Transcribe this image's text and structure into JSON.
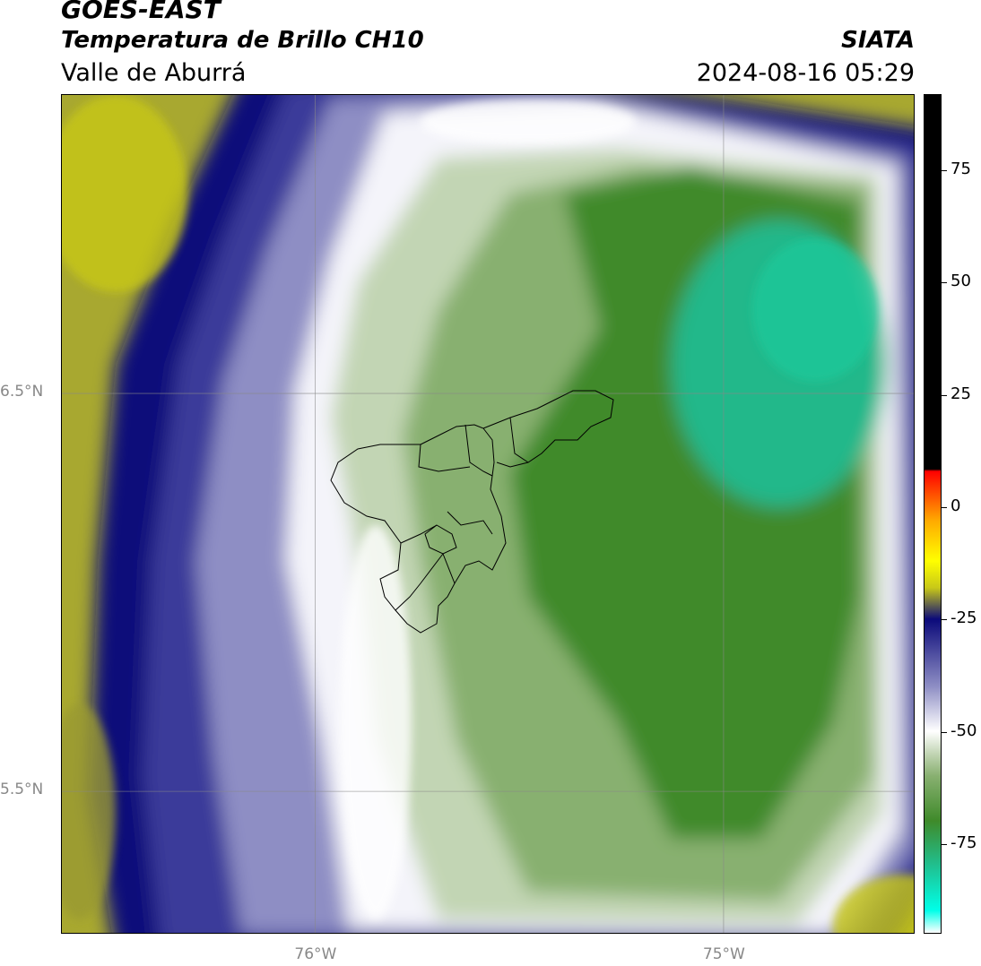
{
  "header": {
    "title": "GOES-EAST",
    "subtitle": "Temperatura de Brillo CH10",
    "region": "Valle de Aburrá",
    "organization": "SIATA",
    "timestamp": "2024-08-16 05:29"
  },
  "map": {
    "lat_gridlines": [
      {
        "value": 6.5,
        "label": "6.5°N"
      },
      {
        "value": 5.5,
        "label": "5.5°N"
      }
    ],
    "lon_gridlines": [
      {
        "value": -76.0,
        "label": "76°W"
      },
      {
        "value": -75.0,
        "label": "75°W"
      }
    ],
    "extent": {
      "lon_min": -76.62,
      "lon_max": -74.53,
      "lat_min": 5.14,
      "lat_max": 7.25
    },
    "colors": {
      "warm_cloud_free": "#c8c818",
      "navy": "#0b0a7a",
      "lavender": "#8e8ec4",
      "white": "#ffffff",
      "pale_green": "#c2d5b4",
      "mid_green": "#88b070",
      "deep_green": "#3f8a2a",
      "teal": "#20c090",
      "boundary": "#000000"
    }
  },
  "colorbar": {
    "min": -95,
    "max": 92,
    "ticks": [
      {
        "value": 75,
        "label": "75"
      },
      {
        "value": 50,
        "label": "50"
      },
      {
        "value": 25,
        "label": "25"
      },
      {
        "value": 0,
        "label": "0"
      },
      {
        "value": -25,
        "label": "-25"
      },
      {
        "value": -50,
        "label": "-50"
      },
      {
        "value": -75,
        "label": "-75"
      }
    ],
    "stops": [
      {
        "value": -95,
        "color": "#ffffff"
      },
      {
        "value": -90,
        "color": "#00ffe8"
      },
      {
        "value": -80,
        "color": "#20c090"
      },
      {
        "value": -70,
        "color": "#3f8a2a"
      },
      {
        "value": -60,
        "color": "#88b070"
      },
      {
        "value": -55,
        "color": "#c2d5b4"
      },
      {
        "value": -50,
        "color": "#ffffff"
      },
      {
        "value": -40,
        "color": "#8e8ec4"
      },
      {
        "value": -25,
        "color": "#0b0a7a"
      },
      {
        "value": -18,
        "color": "#c8c818"
      },
      {
        "value": -12,
        "color": "#ffff00"
      },
      {
        "value": -3,
        "color": "#ffaa00"
      },
      {
        "value": 8,
        "color": "#ff0000"
      },
      {
        "value": 8.5,
        "color": "#000000"
      },
      {
        "value": 92,
        "color": "#000000"
      }
    ]
  }
}
